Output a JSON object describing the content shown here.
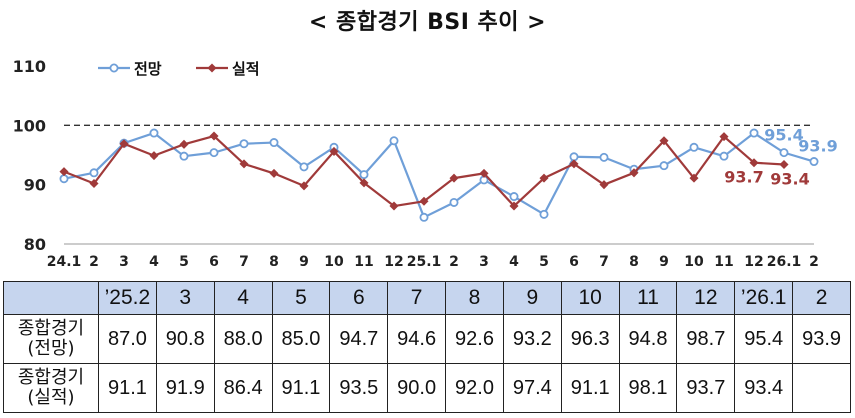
{
  "title": "< 종합경기 BSI 추이 >",
  "chart_data": {
    "type": "line",
    "x": [
      "24.1",
      "2",
      "3",
      "4",
      "5",
      "6",
      "7",
      "8",
      "9",
      "10",
      "11",
      "12",
      "25.1",
      "2",
      "3",
      "4",
      "5",
      "6",
      "7",
      "8",
      "9",
      "10",
      "11",
      "12",
      "26.1",
      "2"
    ],
    "yticks": [
      80,
      90,
      100,
      110
    ],
    "ylim": [
      80,
      110
    ],
    "reference_line": 100,
    "legend": {
      "placement": "top-left"
    },
    "series": [
      {
        "name": "전망",
        "color": "#6f9fd8",
        "values": [
          91.0,
          92.0,
          97.0,
          98.7,
          94.8,
          95.4,
          96.9,
          97.1,
          93.0,
          96.3,
          91.7,
          97.4,
          84.5,
          87.0,
          90.8,
          88.0,
          85.0,
          94.7,
          94.6,
          92.6,
          93.2,
          96.3,
          94.8,
          98.7,
          95.4,
          93.9
        ]
      },
      {
        "name": "실적",
        "color": "#a03a3a",
        "values": [
          92.2,
          90.2,
          96.9,
          94.9,
          96.8,
          98.2,
          93.5,
          91.9,
          89.8,
          95.6,
          90.3,
          86.4,
          87.2,
          91.1,
          91.9,
          86.4,
          91.1,
          93.5,
          90.0,
          92.0,
          97.4,
          91.1,
          98.1,
          93.7,
          93.4,
          null
        ]
      }
    ],
    "annotations": [
      {
        "text": "95.4",
        "series": "전망",
        "x": "26.1"
      },
      {
        "text": "93.9",
        "series": "전망",
        "x": "2"
      },
      {
        "text": "93.7",
        "series": "실적",
        "x": "12"
      },
      {
        "text": "93.4",
        "series": "실적",
        "x": "26.1"
      }
    ]
  },
  "table": {
    "columns": [
      "’25.2",
      "3",
      "4",
      "5",
      "6",
      "7",
      "8",
      "9",
      "10",
      "11",
      "12",
      "’26.1",
      "2"
    ],
    "rows": [
      {
        "label_line1": "종합경기",
        "label_line2": "(전망)",
        "values": [
          "87.0",
          "90.8",
          "88.0",
          "85.0",
          "94.7",
          "94.6",
          "92.6",
          "93.2",
          "96.3",
          "94.8",
          "98.7",
          "95.4",
          "93.9"
        ]
      },
      {
        "label_line1": "종합경기",
        "label_line2": "(실적)",
        "values": [
          "91.1",
          "91.9",
          "86.4",
          "91.1",
          "93.5",
          "90.0",
          "92.0",
          "97.4",
          "91.1",
          "98.1",
          "93.7",
          "93.4",
          ""
        ]
      }
    ]
  }
}
